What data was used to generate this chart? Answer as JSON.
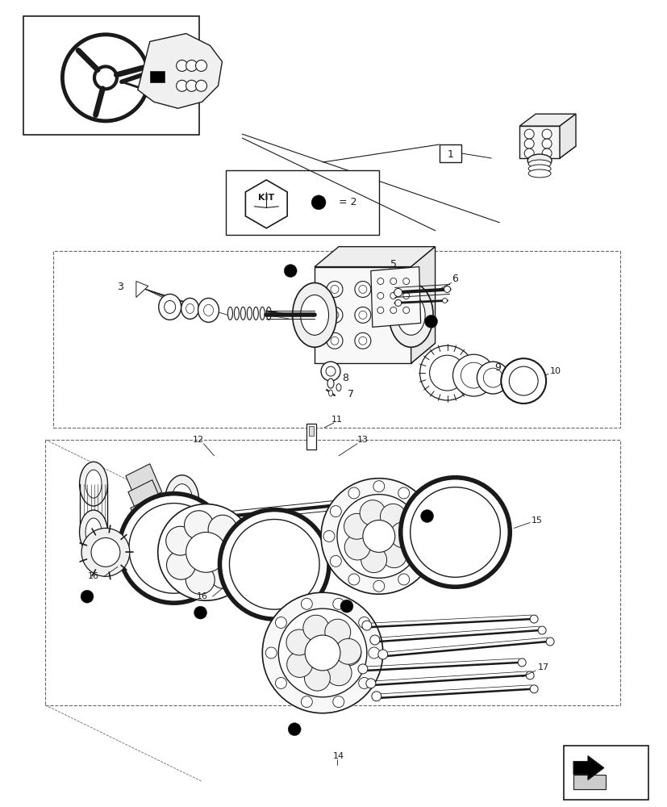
{
  "background_color": "#ffffff",
  "line_color": "#1a1a1a",
  "fig_width": 8.28,
  "fig_height": 10.0,
  "dpi": 100
}
